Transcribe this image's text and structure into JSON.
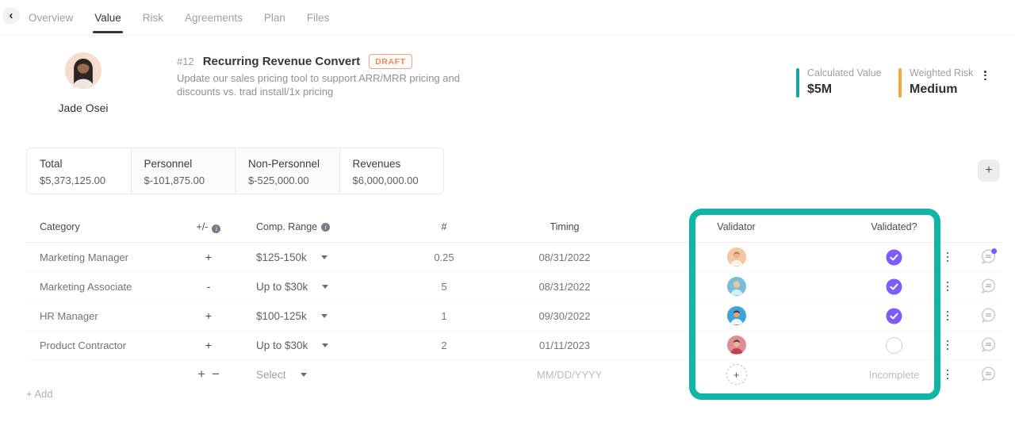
{
  "nav": {
    "back_icon": "‹",
    "tabs": [
      {
        "label": "Overview",
        "active": false
      },
      {
        "label": "Value",
        "active": true
      },
      {
        "label": "Risk",
        "active": false
      },
      {
        "label": "Agreements",
        "active": false
      },
      {
        "label": "Plan",
        "active": false
      },
      {
        "label": "Files",
        "active": false
      }
    ]
  },
  "header": {
    "owner": {
      "name": "Jade Osei",
      "avatar": {
        "bg": "#f6dccc",
        "hair": "#2c2422",
        "skin": "#9c6b4f",
        "top": "#ece7e1"
      }
    },
    "id": "#12",
    "title": "Recurring Revenue Convert",
    "status_badge": "DRAFT",
    "description": "Update our sales pricing tool to support ARR/MRR pricing and discounts vs. trad install/1x pricing",
    "metrics": [
      {
        "label": "Calculated Value",
        "value": "$5M",
        "accent": "#14a5a0"
      },
      {
        "label": "Weighted Risk",
        "value": "Medium",
        "accent": "#f6a63a"
      }
    ]
  },
  "summary_cards": [
    {
      "label": "Total",
      "value": "$5,373,125.00",
      "shaded": false
    },
    {
      "label": "Personnel",
      "value": "$-101,875.00",
      "shaded": true
    },
    {
      "label": "Non-Personnel",
      "value": "$-525,000.00",
      "shaded": true
    },
    {
      "label": "Revenues",
      "value": "$6,000,000.00",
      "shaded": false
    }
  ],
  "add_section_icon": "+",
  "table": {
    "header": {
      "category": "Category",
      "plus_minus": "+/-",
      "comp_range": "Comp. Range",
      "count": "#",
      "timing": "Timing",
      "validator": "Validator",
      "validated": "Validated?"
    },
    "rows": [
      {
        "category": "Marketing Manager",
        "sign": "+",
        "comp_range": "$125-150k",
        "count": "0.25",
        "timing": "08/31/2022",
        "validated": true,
        "notification": true,
        "avatar": {
          "bg": "#f3c6a4",
          "hair": "#a97c4f",
          "skin": "#e9b68d",
          "top": "#f7f5f2"
        }
      },
      {
        "category": "Marketing Associate",
        "sign": "-",
        "comp_range": "Up to $30k",
        "count": "5",
        "timing": "08/31/2022",
        "validated": true,
        "notification": false,
        "avatar": {
          "bg": "#79bed8",
          "hair": "#e7cd92",
          "skin": "#eec3a1",
          "top": "#d8edf0"
        }
      },
      {
        "category": "HR Manager",
        "sign": "+",
        "comp_range": "$100-125k",
        "count": "1",
        "timing": "09/30/2022",
        "validated": true,
        "notification": false,
        "avatar": {
          "bg": "#3ea4dc",
          "hair": "#38302a",
          "skin": "#d9a77e",
          "top": "#f4f6f8"
        }
      },
      {
        "category": "Product Contractor",
        "sign": "+",
        "comp_range": "Up to $30k",
        "count": "2",
        "timing": "01/11/2023",
        "validated": false,
        "notification": false,
        "avatar": {
          "bg": "#e08e95",
          "hair": "#463531",
          "skin": "#e8b793",
          "top": "#c4404a"
        }
      }
    ],
    "new_row": {
      "signs": [
        "+",
        "−"
      ],
      "comp_range_placeholder": "Select",
      "timing_placeholder": "MM/DD/YYYY",
      "add_validator_icon": "+",
      "validated_label": "Incomplete"
    },
    "add_label": "+ Add"
  },
  "annotation": {
    "highlight_color": "#10b5a5"
  }
}
